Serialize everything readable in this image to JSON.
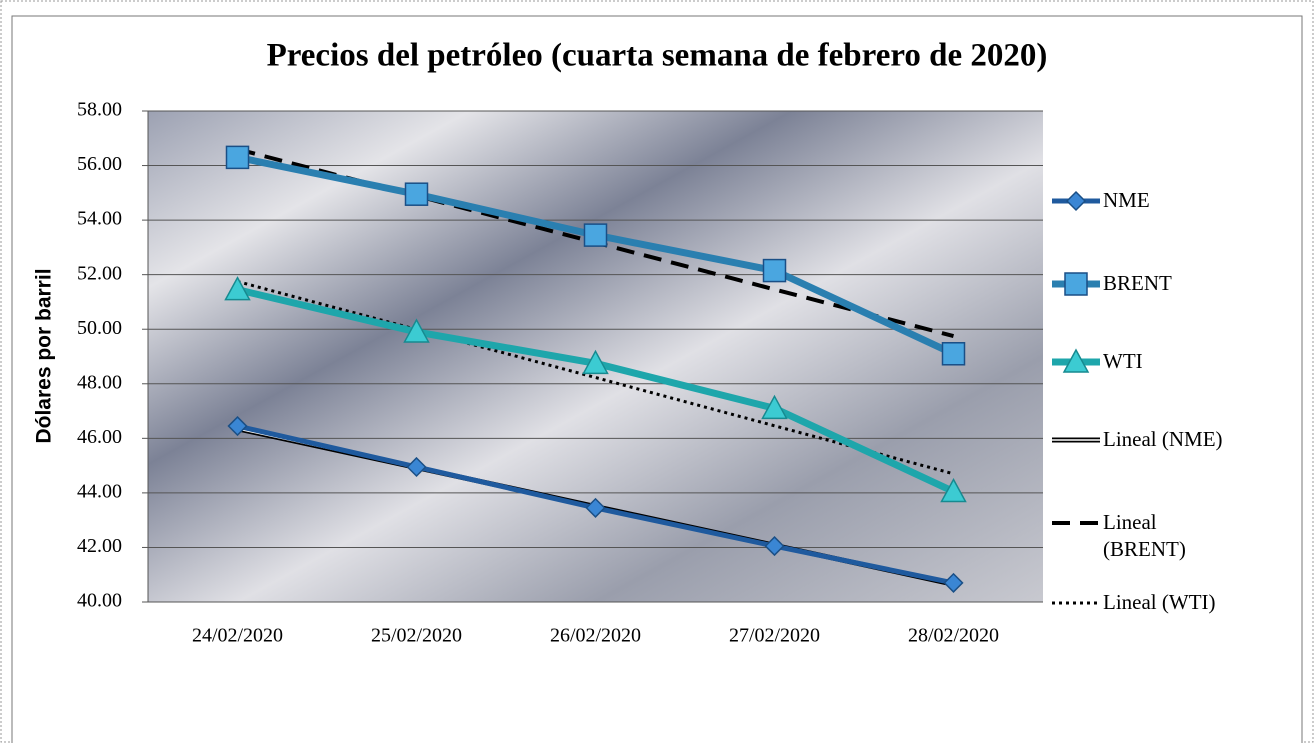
{
  "chart_data": {
    "type": "line",
    "title": "Precios del petróleo (cuarta semana de febrero de 2020)",
    "y_label": "Dólares por barril",
    "categories": [
      "24/02/2020",
      "25/02/2020",
      "26/02/2020",
      "27/02/2020",
      "28/02/2020"
    ],
    "ylim": [
      40,
      58
    ],
    "yticks": [
      {
        "value": 40,
        "label": "40.00"
      },
      {
        "value": 42,
        "label": "42.00"
      },
      {
        "value": 44,
        "label": "44.00"
      },
      {
        "value": 46,
        "label": "46.00"
      },
      {
        "value": 48,
        "label": "48.00"
      },
      {
        "value": 50,
        "label": "50.00"
      },
      {
        "value": 52,
        "label": "52.00"
      },
      {
        "value": 54,
        "label": "54.00"
      },
      {
        "value": 56,
        "label": "56.00"
      },
      {
        "value": 58,
        "label": "58.00"
      }
    ],
    "grid": true,
    "legend": "right",
    "series": [
      {
        "name": "NME",
        "color": "#1f5a9e",
        "marker_color": "#3a86d4",
        "marker": "diamond",
        "style": "solid",
        "values": [
          46.45,
          44.95,
          43.45,
          42.05,
          40.7
        ]
      },
      {
        "name": "BRENT",
        "color": "#2a7fb0",
        "marker_color": "#4aa6e0",
        "marker": "square",
        "style": "solid",
        "values": [
          56.3,
          54.95,
          53.45,
          52.15,
          49.1
        ]
      },
      {
        "name": "WTI",
        "color": "#1ea6ab",
        "marker_color": "#3ccbd2",
        "marker": "triangle",
        "style": "solid",
        "values": [
          51.45,
          49.9,
          48.75,
          47.1,
          44.05
        ]
      },
      {
        "name": "Lineal (NME)",
        "color": "#000000",
        "style": "double",
        "values": [
          46.35,
          44.93,
          43.5,
          42.08,
          40.65
        ]
      },
      {
        "name": "Lineal (BRENT)",
        "color": "#000000",
        "style": "dashed",
        "values": [
          56.6,
          54.89,
          53.18,
          51.46,
          49.75
        ]
      },
      {
        "name": "Lineal (WTI)",
        "color": "#000000",
        "style": "dotted",
        "values": [
          51.75,
          49.99,
          48.23,
          46.46,
          44.7
        ]
      }
    ]
  }
}
